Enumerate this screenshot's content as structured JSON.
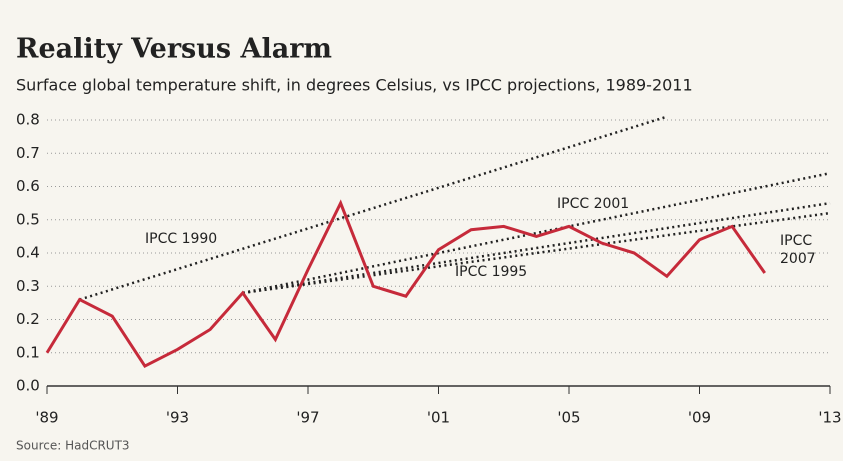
{
  "chart_data": {
    "type": "line",
    "title": "Reality Versus Alarm",
    "subtitle": "Surface global temperature shift, in degrees Celsius, vs IPCC projections, 1989-2011",
    "source": "Source: HadCRUT3",
    "x": [
      1989,
      1990,
      1991,
      1992,
      1993,
      1994,
      1995,
      1996,
      1997,
      1998,
      1999,
      2000,
      2001,
      2002,
      2003,
      2004,
      2005,
      2006,
      2007,
      2008,
      2009,
      2010,
      2011
    ],
    "values": [
      0.1,
      0.26,
      0.21,
      0.06,
      0.11,
      0.17,
      0.28,
      0.14,
      0.35,
      0.55,
      0.3,
      0.27,
      0.41,
      0.47,
      0.48,
      0.45,
      0.48,
      0.43,
      0.4,
      0.33,
      0.44,
      0.48,
      0.34
    ],
    "color": "#c62a3a",
    "projections": [
      {
        "name": "IPCC 1990",
        "color": "#222222",
        "x": [
          1990,
          2008
        ],
        "values": [
          0.26,
          0.81
        ]
      },
      {
        "name": "IPCC 2001",
        "color": "#222222",
        "x": [
          1995,
          2013
        ],
        "values": [
          0.28,
          0.64
        ]
      },
      {
        "name": "IPCC 1995",
        "color": "#222222",
        "x": [
          1995,
          2013
        ],
        "values": [
          0.28,
          0.52
        ]
      },
      {
        "name": "IPCC 2007",
        "color": "#222222",
        "x": [
          1995,
          2013
        ],
        "values": [
          0.28,
          0.55
        ]
      }
    ],
    "xlim": [
      1989,
      2013
    ],
    "xticks": [
      {
        "value": 1989,
        "label": "'89"
      },
      {
        "value": 1993,
        "label": "'93"
      },
      {
        "value": 1997,
        "label": "'97"
      },
      {
        "value": 2001,
        "label": "'01"
      },
      {
        "value": 2005,
        "label": "'05"
      },
      {
        "value": 2009,
        "label": "'09"
      },
      {
        "value": 2013,
        "label": "'13"
      }
    ],
    "ylim": [
      0,
      0.85
    ],
    "yticks": [
      {
        "value": 0,
        "label": "0.0"
      },
      0.1,
      0.2,
      0.3,
      0.4,
      0.5,
      0.6,
      0.7,
      0.8
    ],
    "grid": true
  }
}
